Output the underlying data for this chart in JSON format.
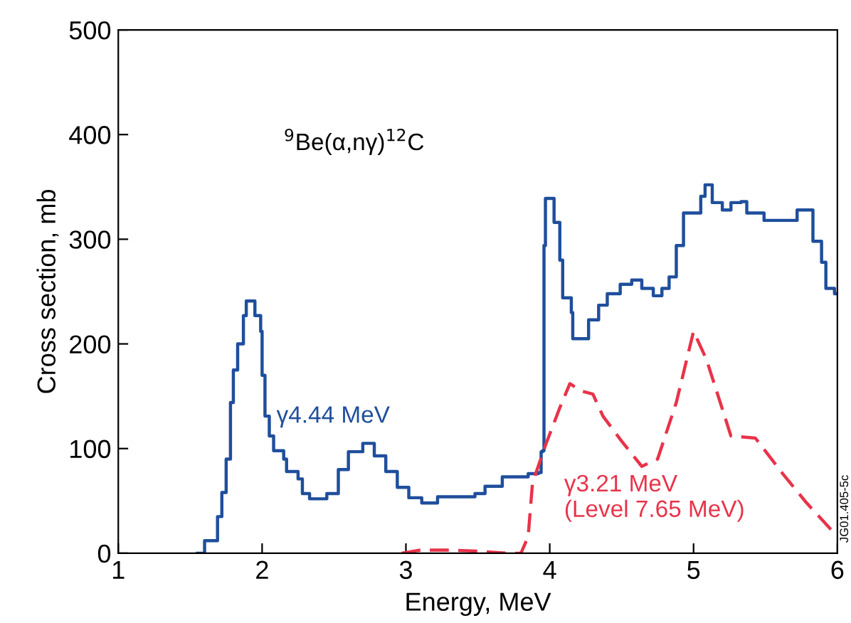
{
  "chart_data": {
    "type": "step",
    "xlabel": "Energy, MeV",
    "ylabel": "Cross section, mb",
    "annotations": [
      "$^{9}$Be(α,nγ)$^{12}$C",
      "JG01.405-5c"
    ],
    "xlim": [
      1,
      6
    ],
    "xticks": [
      1,
      2,
      3,
      4,
      5,
      6
    ],
    "ylim": [
      0,
      500
    ],
    "yticks": [
      0,
      100,
      200,
      300,
      400,
      500
    ],
    "grid": false,
    "legend": false,
    "series": [
      {
        "name": "γ4.44 MeV",
        "color": "#1f4e9c",
        "line_style": "solid",
        "x": [
          1.55,
          1.6,
          1.69,
          1.72,
          1.75,
          1.78,
          1.8,
          1.83,
          1.87,
          1.89,
          1.93,
          1.95,
          1.99,
          2.0,
          2.02,
          2.05,
          2.08,
          2.15,
          2.17,
          2.25,
          2.28,
          2.33,
          2.45,
          2.53,
          2.6,
          2.7,
          2.78,
          2.86,
          2.94,
          3.02,
          3.11,
          3.22,
          3.48,
          3.55,
          3.67,
          3.85,
          3.92,
          3.94,
          3.95,
          3.96,
          3.97,
          4.01,
          4.03,
          4.07,
          4.09,
          4.15,
          4.16,
          4.24,
          4.27,
          4.34,
          4.4,
          4.49,
          4.57,
          4.64,
          4.72,
          4.78,
          4.83,
          4.88,
          4.93,
          5.05,
          5.08,
          5.13,
          5.2,
          5.26,
          5.33,
          5.37,
          5.49,
          5.62,
          5.72,
          5.8,
          5.83,
          5.89,
          5.92,
          5.98,
          6.0
        ],
        "values": [
          0,
          12,
          35,
          58,
          90,
          144,
          175,
          200,
          227,
          241,
          241,
          227,
          212,
          170,
          131,
          112,
          98,
          90,
          78,
          71,
          57,
          52,
          57,
          80,
          97,
          105,
          93,
          78,
          63,
          53,
          48,
          54,
          57,
          64,
          73,
          76,
          77,
          97,
          98,
          294,
          339,
          339,
          316,
          280,
          244,
          230,
          205,
          205,
          223,
          237,
          248,
          257,
          261,
          253,
          246,
          253,
          264,
          294,
          325,
          341,
          352,
          335,
          328,
          335,
          336,
          325,
          318,
          318,
          328,
          328,
          298,
          278,
          253,
          248,
          248
        ]
      },
      {
        "name": "γ3.21 MeV\n(Level 7.65 MeV)",
        "type": "line",
        "color": "#e8334a",
        "line_style": "dashed",
        "x": [
          2.97,
          3.1,
          3.3,
          3.5,
          3.7,
          3.8,
          3.85,
          3.88,
          3.97,
          4.07,
          4.14,
          4.22,
          4.3,
          4.37,
          4.5,
          4.64,
          4.75,
          4.88,
          5.0,
          5.09,
          5.26,
          5.43,
          5.62,
          5.78,
          5.98
        ],
        "values": [
          0,
          3,
          3,
          2,
          0,
          0,
          16,
          67,
          103,
          139,
          162,
          155,
          152,
          131,
          107,
          83,
          90,
          144,
          212,
          185,
          112,
          110,
          76,
          49,
          19
        ]
      }
    ]
  }
}
